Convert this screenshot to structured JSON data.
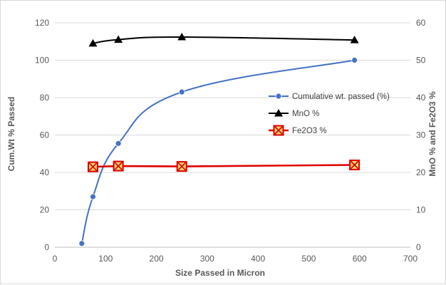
{
  "chart_data": {
    "type": "line",
    "xlabel": "Size Passed in Micron",
    "ylabel": "Cum.Wt % Passed",
    "y2label": "MnO % and Fe2O3 %",
    "xlim": [
      0,
      700
    ],
    "ylim": [
      0,
      120
    ],
    "y2lim": [
      0,
      60
    ],
    "xticks": [
      0,
      100,
      200,
      300,
      400,
      500,
      600,
      700
    ],
    "yticks": [
      0,
      20,
      40,
      60,
      80,
      100,
      120
    ],
    "y2ticks": [
      0,
      10,
      20,
      30,
      40,
      50,
      60
    ],
    "grid": "horizontal",
    "legend_position": "right-middle",
    "series": [
      {
        "name": "Cumulative wt. passed (%)",
        "axis": "left",
        "marker": "circle",
        "smooth": true,
        "color": "#4472C4",
        "x": [
          53,
          75,
          125,
          250,
          590
        ],
        "y": [
          2,
          27,
          55.5,
          83,
          100
        ]
      },
      {
        "name": "MnO %",
        "axis": "right",
        "marker": "triangle",
        "smooth": true,
        "color": "#000000",
        "x": [
          75,
          125,
          250,
          590
        ],
        "y": [
          54.5,
          55.5,
          56.2,
          55.4
        ]
      },
      {
        "name": "Fe2O3 %",
        "axis": "right",
        "marker": "square-x",
        "smooth": false,
        "color": "#E00000",
        "x": [
          75,
          125,
          250,
          590
        ],
        "y": [
          21.5,
          21.7,
          21.6,
          22
        ]
      }
    ]
  }
}
